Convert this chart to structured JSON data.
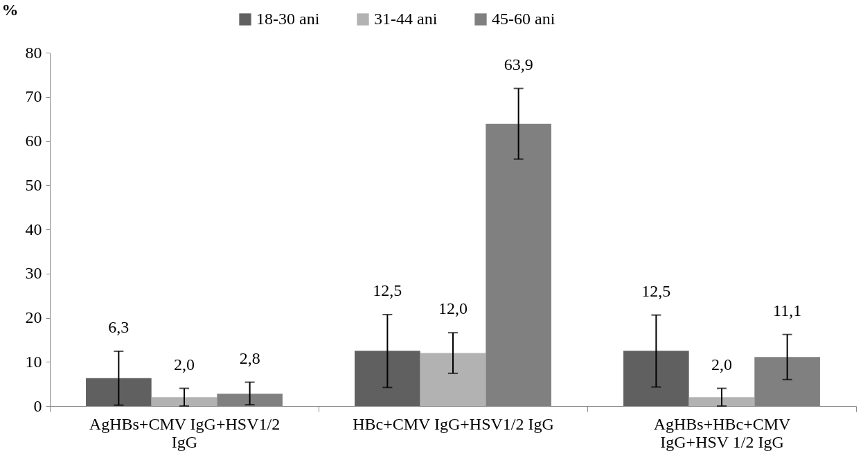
{
  "chart_data": {
    "type": "bar",
    "ylabel": "%",
    "categories": [
      "AgHBs+CMV IgG+HSV1/2 IgG",
      "HBc+CMV IgG+HSV1/2 IgG",
      "AgHBs+HBc+CMV IgG+HSV 1/2 IgG"
    ],
    "series": [
      {
        "name": "18-30 ani",
        "color": "#606060",
        "values": [
          6.3,
          12.5,
          12.5
        ],
        "errors": [
          [
            0.2,
            12.4
          ],
          [
            4.2,
            20.7
          ],
          [
            4.3,
            20.6
          ]
        ],
        "value_labels": [
          "6,3",
          "12,5",
          "12,5"
        ]
      },
      {
        "name": "31-44 ani",
        "color": "#b2b2b2",
        "values": [
          2.0,
          12.0,
          2.0
        ],
        "errors": [
          [
            0,
            4.0
          ],
          [
            7.4,
            16.6
          ],
          [
            0,
            4.0
          ]
        ],
        "value_labels": [
          "2,0",
          "12,0",
          "2,0"
        ]
      },
      {
        "name": "45-60 ani",
        "color": "#808080",
        "values": [
          2.8,
          63.9,
          11.1
        ],
        "errors": [
          [
            0.3,
            5.4
          ],
          [
            55.9,
            71.9
          ],
          [
            6.0,
            16.2
          ]
        ],
        "value_labels": [
          "2,8",
          "63,9",
          "11,1"
        ]
      }
    ],
    "ylim": [
      0,
      80
    ],
    "yticks": [
      0,
      10,
      20,
      30,
      40,
      50,
      60,
      70,
      80
    ],
    "grid": false,
    "legend": "top"
  }
}
